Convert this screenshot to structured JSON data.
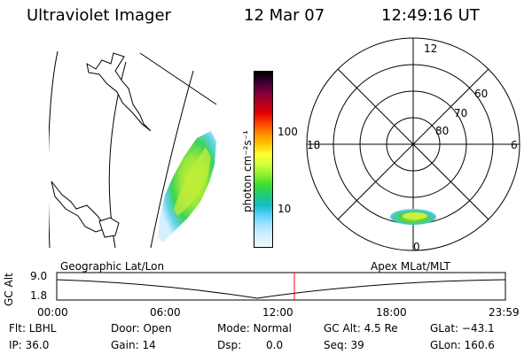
{
  "header": {
    "title": "Ultraviolet Imager",
    "date": "12 Mar 07",
    "time": "12:49:16 UT"
  },
  "colorbar": {
    "unit_label": "photon cm⁻²s⁻¹",
    "tick_labels": [
      "100",
      "10"
    ],
    "colors": [
      "#000000",
      "#3a0030",
      "#7a0040",
      "#b20020",
      "#e00000",
      "#ff4000",
      "#ff8c00",
      "#ffc400",
      "#ffff33",
      "#d2ff3c",
      "#8cf02d",
      "#3cdc32",
      "#1ecc78",
      "#14bec8",
      "#64d2ff",
      "#aae6ff",
      "#d7f0ff",
      "#f0faff"
    ]
  },
  "polar_plot": {
    "mlt_labels": {
      "top": "12",
      "right": "6",
      "bottom": "0",
      "left": "18"
    },
    "lat_labels": [
      "60",
      "70",
      "80"
    ]
  },
  "timeline": {
    "left_label": "Geographic Lat/Lon",
    "right_label": "Apex MLat/MLT",
    "y_axis_label": "GC Alt",
    "y_ticks": [
      "9.0",
      "1.8"
    ],
    "x_ticks": [
      "00:00",
      "06:00",
      "12:00",
      "18:00",
      "23:59"
    ],
    "current_marker_time": "12:49",
    "marker_color": "#ff0000"
  },
  "info": {
    "filter": "Flt: LBHL",
    "door": "Door: Open",
    "mode": "Mode: Normal",
    "gc_alt": "GC Alt: 4.5 Re",
    "glat": "GLat: −43.1",
    "ip": "IP: 36.0",
    "gain": "Gain: 14",
    "dsp_label": "Dsp:",
    "dsp_value": "0.0",
    "seq": "Seq: 39",
    "glon": "GLon: 160.6"
  }
}
